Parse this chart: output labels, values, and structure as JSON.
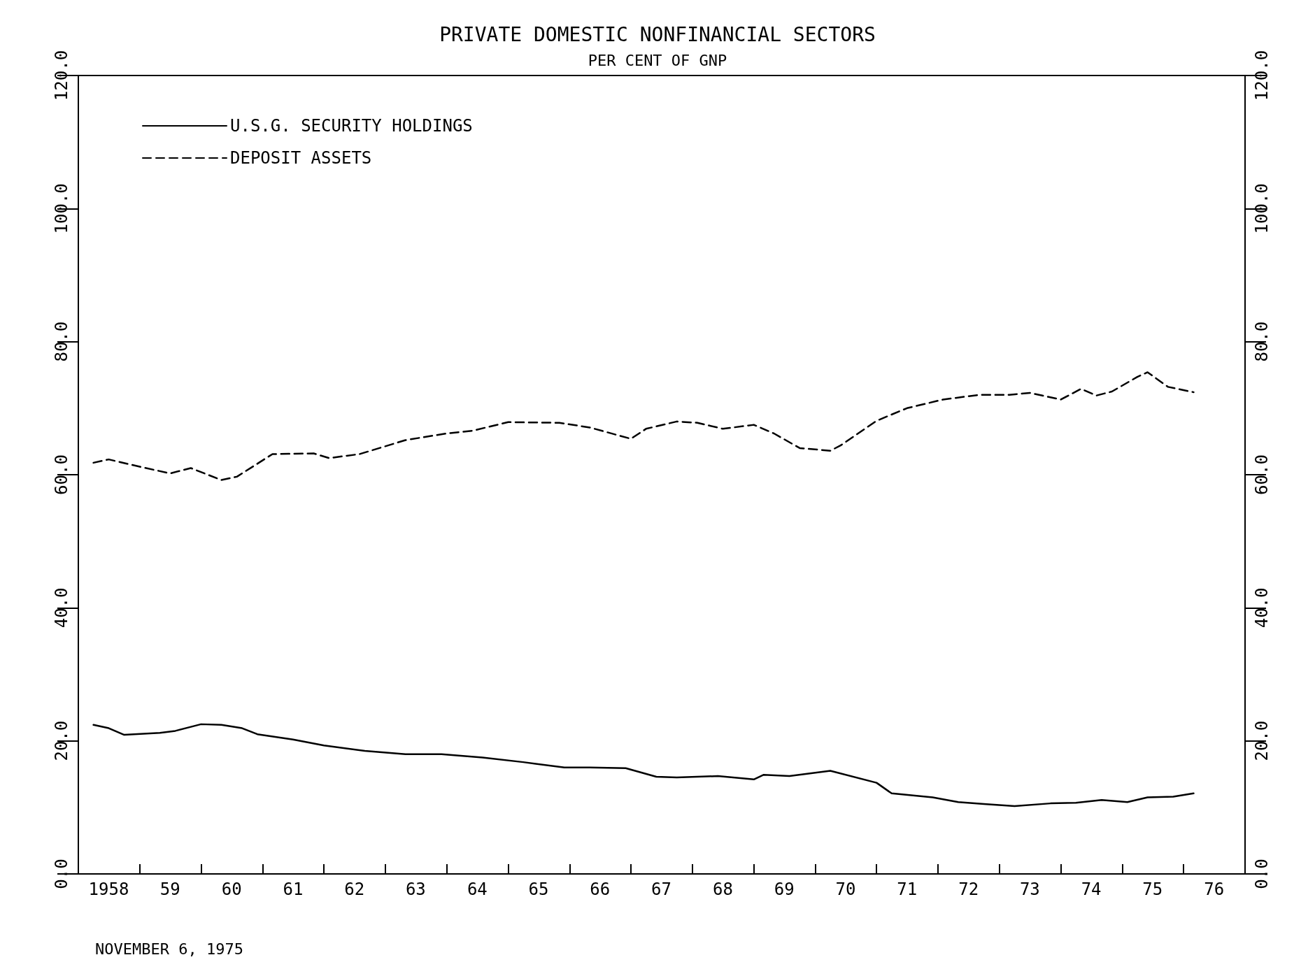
{
  "chart_data": {
    "type": "line",
    "title": "PRIVATE DOMESTIC NONFINANCIAL SECTORS",
    "subtitle": "PER CENT OF GNP",
    "annotations": [
      "NOVEMBER 6, 1975"
    ],
    "xlim": [
      "1958-01",
      "1977-01"
    ],
    "xticks": [
      {
        "value": "1958-07",
        "label": "1958"
      },
      {
        "value": "1959-01",
        "label": null
      },
      {
        "value": "1959-07",
        "label": "59"
      },
      {
        "value": "1960-01",
        "label": null
      },
      {
        "value": "1960-07",
        "label": "60"
      },
      {
        "value": "1961-01",
        "label": null
      },
      {
        "value": "1961-07",
        "label": "61"
      },
      {
        "value": "1962-01",
        "label": null
      },
      {
        "value": "1962-07",
        "label": "62"
      },
      {
        "value": "1963-01",
        "label": null
      },
      {
        "value": "1963-07",
        "label": "63"
      },
      {
        "value": "1964-01",
        "label": null
      },
      {
        "value": "1964-07",
        "label": "64"
      },
      {
        "value": "1965-01",
        "label": null
      },
      {
        "value": "1965-07",
        "label": "65"
      },
      {
        "value": "1966-01",
        "label": null
      },
      {
        "value": "1966-07",
        "label": "66"
      },
      {
        "value": "1967-01",
        "label": null
      },
      {
        "value": "1967-07",
        "label": "67"
      },
      {
        "value": "1968-01",
        "label": null
      },
      {
        "value": "1968-07",
        "label": "68"
      },
      {
        "value": "1969-01",
        "label": null
      },
      {
        "value": "1969-07",
        "label": "69"
      },
      {
        "value": "1970-01",
        "label": null
      },
      {
        "value": "1970-07",
        "label": "70"
      },
      {
        "value": "1971-01",
        "label": null
      },
      {
        "value": "1971-07",
        "label": "71"
      },
      {
        "value": "1972-01",
        "label": null
      },
      {
        "value": "1972-07",
        "label": "72"
      },
      {
        "value": "1973-01",
        "label": null
      },
      {
        "value": "1973-07",
        "label": "73"
      },
      {
        "value": "1974-01",
        "label": null
      },
      {
        "value": "1974-07",
        "label": "74"
      },
      {
        "value": "1975-01",
        "label": null
      },
      {
        "value": "1975-07",
        "label": "75"
      },
      {
        "value": "1976-01",
        "label": null
      },
      {
        "value": "1976-07",
        "label": "76"
      }
    ],
    "ylim": [
      0,
      120
    ],
    "yticks": [
      {
        "value": 0,
        "label": "0.0"
      },
      {
        "value": 20,
        "label": "20.0"
      },
      {
        "value": 40,
        "label": "40.0"
      },
      {
        "value": 60,
        "label": "60.0"
      },
      {
        "value": 80,
        "label": "80.0"
      },
      {
        "value": 100,
        "label": "100.0"
      },
      {
        "value": 120,
        "label": "120.0"
      }
    ],
    "y2lim": [
      0,
      120
    ],
    "y2ticks": [
      {
        "value": 0,
        "label": "0.0"
      },
      {
        "value": 20,
        "label": "20.0"
      },
      {
        "value": 40,
        "label": "40.0"
      },
      {
        "value": 60,
        "label": "60.0"
      },
      {
        "value": 80,
        "label": "80.0"
      },
      {
        "value": 100,
        "label": "100.0"
      },
      {
        "value": 120,
        "label": "120.0"
      }
    ],
    "grid": false,
    "legend": "top left",
    "marker": "none",
    "series": [
      {
        "name": "U.S.G. SECURITY HOLDINGS",
        "color": "#000000",
        "line_style": "solid",
        "x": [
          "1958-04",
          "1958-07",
          "1958-10",
          "1959-05",
          "1959-08",
          "1960-01",
          "1960-05",
          "1960-09",
          "1960-12",
          "1961-07",
          "1962-01",
          "1962-09",
          "1963-05",
          "1963-12",
          "1964-08",
          "1965-04",
          "1965-12",
          "1966-05",
          "1966-12",
          "1967-06",
          "1967-10",
          "1968-06",
          "1969-01",
          "1969-03",
          "1969-08",
          "1970-04",
          "1971-01",
          "1971-04",
          "1971-12",
          "1972-05",
          "1972-10",
          "1973-04",
          "1973-11",
          "1974-04",
          "1974-09",
          "1975-02",
          "1975-06",
          "1975-11",
          "1976-03"
        ],
        "values": [
          22.4,
          21.9,
          20.9,
          21.2,
          21.5,
          22.5,
          22.4,
          21.9,
          21.0,
          20.2,
          19.3,
          18.5,
          18.0,
          18.0,
          17.5,
          16.8,
          16.0,
          16.0,
          15.9,
          14.6,
          14.5,
          14.7,
          14.2,
          14.9,
          14.7,
          15.5,
          13.7,
          12.1,
          11.5,
          10.8,
          10.5,
          10.2,
          10.6,
          10.7,
          11.1,
          10.8,
          11.5,
          11.6,
          12.1
        ]
      },
      {
        "name": "DEPOSIT ASSETS",
        "color": "#000000",
        "line_style": "dashed",
        "x": [
          "1958-04",
          "1958-07",
          "1959-01",
          "1959-07",
          "1959-11",
          "1960-05",
          "1960-08",
          "1961-03",
          "1961-11",
          "1962-02",
          "1962-08",
          "1963-05",
          "1964-01",
          "1964-06",
          "1965-01",
          "1965-11",
          "1966-05",
          "1967-01",
          "1967-04",
          "1967-10",
          "1968-02",
          "1968-07",
          "1969-01",
          "1969-05",
          "1969-10",
          "1970-04",
          "1970-06",
          "1971-01",
          "1971-07",
          "1972-02",
          "1972-09",
          "1973-03",
          "1973-07",
          "1974-01",
          "1974-05",
          "1974-08",
          "1974-11",
          "1975-04",
          "1975-06",
          "1975-10",
          "1976-03"
        ],
        "values": [
          61.8,
          62.3,
          61.2,
          60.2,
          61.0,
          59.2,
          59.7,
          63.1,
          63.2,
          62.5,
          63.1,
          65.2,
          66.2,
          66.6,
          67.9,
          67.8,
          67.1,
          65.4,
          66.9,
          68.0,
          67.8,
          66.9,
          67.5,
          66.2,
          64.0,
          63.6,
          64.4,
          68.1,
          70.0,
          71.3,
          72.0,
          72.0,
          72.3,
          71.3,
          72.9,
          71.9,
          72.5,
          74.7,
          75.4,
          73.2,
          72.4
        ]
      }
    ]
  }
}
